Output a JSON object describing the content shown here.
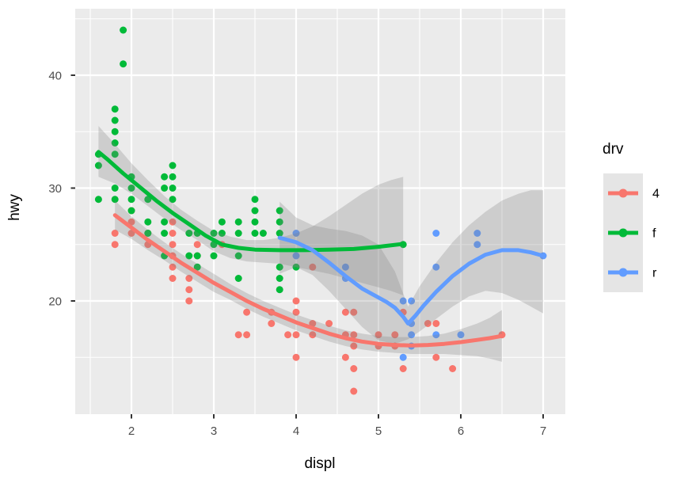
{
  "chart_data": {
    "type": "scatter",
    "title": "",
    "xlabel": "displ",
    "ylabel": "hwy",
    "x_ticks": [
      2,
      3,
      4,
      5,
      6,
      7
    ],
    "y_ticks": [
      20,
      30,
      40
    ],
    "x_minor": [
      1.5,
      2.5,
      3.5,
      4.5,
      5.5,
      6.5
    ],
    "y_minor": [
      15,
      25,
      35,
      45
    ],
    "xlim": [
      1.33,
      7.27
    ],
    "ylim": [
      10.0,
      45.9
    ],
    "grid": true,
    "panel_bg": "#EBEBEB",
    "grid_color": "#FFFFFF",
    "ribbon_color": "#808080",
    "ribbon_opacity": 0.28,
    "axis_text_color": "#4D4D4D",
    "tick_mark_color": "#333333",
    "legend": {
      "title": "drv",
      "position": "right",
      "key_bg": "#E5E5E5",
      "entries": [
        {
          "label": "4",
          "color": "#F8766D"
        },
        {
          "label": "f",
          "color": "#00BA38"
        },
        {
          "label": "r",
          "color": "#619CFF"
        }
      ]
    },
    "series": [
      {
        "name": "4",
        "color": "#F8766D",
        "points": [
          [
            1.8,
            26
          ],
          [
            1.8,
            25
          ],
          [
            2.0,
            28
          ],
          [
            2.0,
            27
          ],
          [
            2.0,
            26
          ],
          [
            2.2,
            26
          ],
          [
            2.2,
            25
          ],
          [
            2.5,
            27
          ],
          [
            2.5,
            26
          ],
          [
            2.5,
            25
          ],
          [
            2.5,
            24
          ],
          [
            2.5,
            23
          ],
          [
            2.5,
            22
          ],
          [
            2.7,
            22
          ],
          [
            2.7,
            21
          ],
          [
            2.7,
            20
          ],
          [
            2.8,
            25
          ],
          [
            2.8,
            24
          ],
          [
            3.1,
            25
          ],
          [
            3.3,
            17
          ],
          [
            3.4,
            19
          ],
          [
            3.4,
            17
          ],
          [
            3.7,
            19
          ],
          [
            3.7,
            18
          ],
          [
            3.9,
            17
          ],
          [
            4.0,
            20
          ],
          [
            4.0,
            19
          ],
          [
            4.0,
            17
          ],
          [
            4.0,
            15
          ],
          [
            4.2,
            23
          ],
          [
            4.2,
            18
          ],
          [
            4.2,
            17
          ],
          [
            4.4,
            18
          ],
          [
            4.6,
            19
          ],
          [
            4.6,
            17
          ],
          [
            4.6,
            15
          ],
          [
            4.7,
            19
          ],
          [
            4.7,
            17
          ],
          [
            4.7,
            16
          ],
          [
            4.7,
            14
          ],
          [
            4.7,
            12
          ],
          [
            5.0,
            17
          ],
          [
            5.0,
            16
          ],
          [
            5.2,
            17
          ],
          [
            5.2,
            16
          ],
          [
            5.3,
            19
          ],
          [
            5.3,
            14
          ],
          [
            5.6,
            18
          ],
          [
            5.7,
            18
          ],
          [
            5.7,
            15
          ],
          [
            5.9,
            14
          ],
          [
            6.5,
            17
          ]
        ],
        "smooth": [
          [
            1.8,
            27.6
          ],
          [
            2.0,
            26.5
          ],
          [
            2.2,
            25.4
          ],
          [
            2.4,
            24.4
          ],
          [
            2.6,
            23.4
          ],
          [
            2.8,
            22.5
          ],
          [
            3.0,
            21.6
          ],
          [
            3.2,
            20.8
          ],
          [
            3.4,
            20.0
          ],
          [
            3.6,
            19.3
          ],
          [
            3.8,
            18.7
          ],
          [
            4.0,
            18.1
          ],
          [
            4.2,
            17.6
          ],
          [
            4.4,
            17.1
          ],
          [
            4.6,
            16.7
          ],
          [
            4.8,
            16.4
          ],
          [
            5.0,
            16.2
          ],
          [
            5.2,
            16.1
          ],
          [
            5.4,
            16.05
          ],
          [
            5.6,
            16.1
          ],
          [
            5.8,
            16.2
          ],
          [
            6.0,
            16.35
          ],
          [
            6.2,
            16.55
          ],
          [
            6.35,
            16.7
          ],
          [
            6.5,
            16.9
          ]
        ],
        "ribbon": {
          "x": [
            1.8,
            2.0,
            2.2,
            2.4,
            2.6,
            2.8,
            3.0,
            3.2,
            3.4,
            3.6,
            3.8,
            4.0,
            4.2,
            4.4,
            4.6,
            4.8,
            5.0,
            5.2,
            5.4,
            5.6,
            5.8,
            6.0,
            6.2,
            6.35,
            6.5
          ],
          "upper": [
            28.9,
            27.5,
            26.3,
            25.2,
            24.2,
            23.3,
            22.4,
            21.5,
            20.7,
            20.0,
            19.4,
            18.8,
            18.3,
            17.8,
            17.4,
            17.1,
            16.9,
            16.8,
            16.8,
            16.9,
            17.1,
            17.5,
            18.0,
            18.5,
            19.2
          ],
          "lower": [
            26.3,
            25.5,
            24.5,
            23.6,
            22.6,
            21.7,
            20.8,
            20.1,
            19.3,
            18.6,
            18.0,
            17.4,
            16.9,
            16.4,
            16.0,
            15.7,
            15.5,
            15.4,
            15.3,
            15.3,
            15.3,
            15.2,
            15.1,
            14.9,
            14.6
          ]
        }
      },
      {
        "name": "f",
        "color": "#00BA38",
        "points": [
          [
            1.6,
            33
          ],
          [
            1.6,
            32
          ],
          [
            1.6,
            29
          ],
          [
            1.8,
            37
          ],
          [
            1.8,
            36
          ],
          [
            1.8,
            35
          ],
          [
            1.8,
            34
          ],
          [
            1.8,
            33
          ],
          [
            1.8,
            30
          ],
          [
            1.8,
            29
          ],
          [
            1.9,
            44
          ],
          [
            1.9,
            41
          ],
          [
            2.0,
            31
          ],
          [
            2.0,
            30
          ],
          [
            2.0,
            29
          ],
          [
            2.0,
            28
          ],
          [
            2.2,
            29
          ],
          [
            2.2,
            27
          ],
          [
            2.2,
            26
          ],
          [
            2.4,
            31
          ],
          [
            2.4,
            30
          ],
          [
            2.4,
            27
          ],
          [
            2.4,
            26
          ],
          [
            2.4,
            24
          ],
          [
            2.5,
            32
          ],
          [
            2.5,
            31
          ],
          [
            2.5,
            30
          ],
          [
            2.5,
            29
          ],
          [
            2.7,
            26
          ],
          [
            2.7,
            24
          ],
          [
            2.8,
            26
          ],
          [
            2.8,
            24
          ],
          [
            2.8,
            23
          ],
          [
            3.0,
            26
          ],
          [
            3.0,
            25
          ],
          [
            3.0,
            24
          ],
          [
            3.1,
            27
          ],
          [
            3.1,
            26
          ],
          [
            3.3,
            27
          ],
          [
            3.3,
            26
          ],
          [
            3.3,
            24
          ],
          [
            3.3,
            22
          ],
          [
            3.5,
            29
          ],
          [
            3.5,
            28
          ],
          [
            3.5,
            27
          ],
          [
            3.5,
            26
          ],
          [
            3.6,
            26
          ],
          [
            3.8,
            28
          ],
          [
            3.8,
            27
          ],
          [
            3.8,
            26
          ],
          [
            3.8,
            23
          ],
          [
            3.8,
            22
          ],
          [
            3.8,
            21
          ],
          [
            4.0,
            23
          ],
          [
            5.3,
            25
          ]
        ],
        "smooth": [
          [
            1.6,
            33.2
          ],
          [
            1.7,
            32.6
          ],
          [
            1.9,
            31.3
          ],
          [
            2.1,
            30.1
          ],
          [
            2.3,
            28.9
          ],
          [
            2.5,
            27.8
          ],
          [
            2.7,
            26.8
          ],
          [
            2.9,
            25.8
          ],
          [
            3.1,
            25.0
          ],
          [
            3.3,
            24.7
          ],
          [
            3.5,
            24.55
          ],
          [
            3.8,
            24.5
          ],
          [
            4.1,
            24.5
          ],
          [
            4.4,
            24.55
          ],
          [
            4.7,
            24.6
          ],
          [
            5.0,
            24.8
          ],
          [
            5.3,
            25.05
          ]
        ],
        "ribbon": {
          "x": [
            1.6,
            1.8,
            2.0,
            2.2,
            2.4,
            2.6,
            2.8,
            3.0,
            3.2,
            3.4,
            3.6,
            3.8,
            4.0,
            4.2,
            4.4,
            4.6,
            4.8,
            5.0,
            5.15,
            5.3
          ],
          "upper": [
            35.5,
            33.9,
            32.2,
            30.7,
            29.3,
            28.1,
            27.1,
            26.2,
            25.7,
            25.4,
            25.4,
            25.6,
            26.0,
            26.6,
            27.5,
            28.5,
            29.5,
            30.3,
            30.7,
            31.0
          ],
          "lower": [
            31.0,
            30.4,
            29.5,
            28.4,
            27.3,
            26.3,
            25.4,
            24.4,
            23.8,
            23.5,
            23.4,
            23.3,
            23.0,
            22.7,
            22.4,
            22.0,
            21.6,
            21.2,
            20.9,
            20.5
          ]
        }
      },
      {
        "name": "r",
        "color": "#619CFF",
        "points": [
          [
            4.0,
            26
          ],
          [
            4.0,
            24
          ],
          [
            4.6,
            23
          ],
          [
            4.6,
            22
          ],
          [
            5.3,
            20
          ],
          [
            5.3,
            15
          ],
          [
            5.4,
            20
          ],
          [
            5.4,
            18
          ],
          [
            5.4,
            17
          ],
          [
            5.4,
            16
          ],
          [
            5.7,
            26
          ],
          [
            5.7,
            23
          ],
          [
            5.7,
            17
          ],
          [
            6.0,
            17
          ],
          [
            6.2,
            26
          ],
          [
            6.2,
            25
          ],
          [
            7.0,
            24
          ]
        ],
        "smooth": [
          [
            3.8,
            25.6
          ],
          [
            4.0,
            25.2
          ],
          [
            4.2,
            24.5
          ],
          [
            4.4,
            23.4
          ],
          [
            4.6,
            22.2
          ],
          [
            4.8,
            21.1
          ],
          [
            5.0,
            20.3
          ],
          [
            5.1,
            19.9
          ],
          [
            5.2,
            19.4
          ],
          [
            5.3,
            18.6
          ],
          [
            5.36,
            18.0
          ],
          [
            5.45,
            18.7
          ],
          [
            5.55,
            19.6
          ],
          [
            5.7,
            20.8
          ],
          [
            5.9,
            22.2
          ],
          [
            6.1,
            23.3
          ],
          [
            6.3,
            24.1
          ],
          [
            6.5,
            24.5
          ],
          [
            6.7,
            24.5
          ],
          [
            6.85,
            24.3
          ],
          [
            7.0,
            24.0
          ]
        ],
        "ribbon": {
          "x": [
            3.8,
            4.0,
            4.2,
            4.4,
            4.6,
            4.8,
            5.0,
            5.2,
            5.36,
            5.5,
            5.7,
            5.9,
            6.1,
            6.3,
            6.5,
            6.7,
            6.85,
            7.0
          ],
          "upper": [
            28.8,
            27.4,
            26.7,
            26.4,
            26.2,
            25.8,
            25.0,
            22.6,
            19.5,
            21.3,
            23.4,
            25.2,
            26.7,
            27.9,
            28.9,
            29.5,
            29.8,
            29.8
          ],
          "lower": [
            22.4,
            23.0,
            22.3,
            20.9,
            19.3,
            17.7,
            16.5,
            16.2,
            16.6,
            17.3,
            18.4,
            19.5,
            20.4,
            20.9,
            20.7,
            20.1,
            19.5,
            18.9
          ]
        }
      }
    ]
  }
}
